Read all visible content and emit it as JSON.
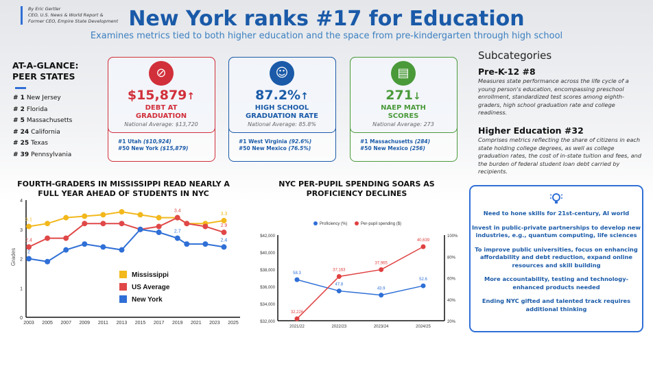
{
  "byline": [
    "By Eric Gertler",
    "CEO, U.S. News & World Report &",
    "Former CEO, Empire State Development"
  ],
  "title": "New York ranks #17 for Education",
  "subtitle": "Examines metrics tied to both higher education and the space from pre-kindergarten through high school",
  "glance": {
    "heading1": "AT-A-GLANCE:",
    "heading2": "PEER STATES",
    "peers": [
      {
        "rank": "# 1",
        "state": "New Jersey"
      },
      {
        "rank": "# 2",
        "state": "Florida"
      },
      {
        "rank": "# 5",
        "state": "Massachusetts"
      },
      {
        "rank": "# 24",
        "state": "California"
      },
      {
        "rank": "# 25",
        "state": "Texas"
      },
      {
        "rank": "# 39",
        "state": "Pennsylvania"
      }
    ]
  },
  "cards": [
    {
      "icon": "money-icon",
      "value": "$15,879",
      "arrow": "↑",
      "label1": "DEBT AT",
      "label2": "GRADUATION",
      "avg": "National Average: $13,720",
      "best": "#1 Utah",
      "best_val": "($10,924)",
      "worst": "#50 New York",
      "worst_val": "($15,879)",
      "color": "#d12f3a"
    },
    {
      "icon": "graduate-icon",
      "value": "87.2%",
      "arrow": "↑",
      "label1": "HIGH SCHOOL",
      "label2": "GRADUATION RATE",
      "avg": "National Average: 85.8%",
      "best": "#1 West Virginia",
      "best_val": "(92.6%)",
      "worst": "#50 New Mexico",
      "worst_val": "(76.5%)",
      "color": "#1a5aa8"
    },
    {
      "icon": "book-icon",
      "value": "271",
      "arrow": "↓",
      "label1": "NAEP MATH",
      "label2": "SCORES",
      "avg": "National Average: 273",
      "best": "#1 Massachusetts",
      "best_val": "(284)",
      "worst": "#50 New Mexico",
      "worst_val": "(256)",
      "color": "#4a9a3a"
    }
  ],
  "subcategories": {
    "heading": "Subcategories",
    "prek_title": "Pre-K-12 #8",
    "prek_desc": "Measures state performance across the life cycle of a young person's education, encompassing preschool enrollment, standardized test scores among eighth-graders, high school graduation rate and college readiness.",
    "higher_title": "Higher Education #32",
    "higher_desc": "Comprises metrics reflecting the share of citizens in each state holding college degrees, as well as college graduation rates, the cost of in-state tuition and fees, and the burden of federal student loan debt carried by recipients."
  },
  "recommendations": [
    "Need to hone skills for 21st-century, AI world",
    "Invest in public-private partnerships to develop new industries, e.g., quantum computing, life sciences",
    "To improve public universities, focus on enhancing affordability and debt reduction, expand online resources and skill building",
    "More accountability, testing and technology-enhanced products needed",
    "Ending NYC gifted and talented track requires additional thinking"
  ],
  "chart_data": [
    {
      "type": "line",
      "title": "FOURTH-GRADERS IN MISSISSIPPI READ NEARLY A FULL YEAR AHEAD OF STUDENTS IN NYC",
      "ylabel": "Grades",
      "ylim": [
        0,
        4
      ],
      "yticks": [
        "0",
        "1",
        "2",
        "3",
        "4"
      ],
      "xlim": [
        2003,
        2025
      ],
      "xticks": [
        "2003",
        "2005",
        "2007",
        "2009",
        "2011",
        "2013",
        "2015",
        "2017",
        "2019",
        "2021",
        "2023",
        "2025"
      ],
      "x": [
        2003,
        2005,
        2007,
        2009,
        2011,
        2013,
        2015,
        2017,
        2019,
        2020,
        2022,
        2024
      ],
      "legend_position": "center",
      "series": [
        {
          "name": "Mississippi",
          "color": "#f2b81c",
          "values": [
            3.1,
            3.2,
            3.4,
            3.45,
            3.5,
            3.6,
            3.5,
            3.4,
            3.4,
            3.2,
            3.2,
            3.3
          ],
          "labels": {
            "0": "3.1",
            "11": "3.3"
          }
        },
        {
          "name": "US Average",
          "color": "#e04848",
          "values": [
            2.4,
            2.7,
            2.7,
            3.2,
            3.2,
            3.2,
            3.0,
            3.1,
            3.4,
            3.2,
            3.1,
            2.9
          ],
          "labels": {
            "0": "2.4",
            "8": "3.4",
            "11": "2.9"
          }
        },
        {
          "name": "New York",
          "color": "#2f6fd6",
          "values": [
            2.0,
            1.9,
            2.3,
            2.5,
            2.4,
            2.3,
            3.0,
            2.9,
            2.7,
            2.5,
            2.5,
            2.4
          ],
          "labels": {
            "0": "2",
            "8": "2.7",
            "11": "2.4"
          }
        }
      ]
    },
    {
      "type": "line",
      "title": "NYC PER-PUPIL SPENDING SOARS AS PROFICIENCY  DECLINES",
      "categories": [
        "2021/22",
        "2022/23",
        "2023/24",
        "2024/25"
      ],
      "y_left": {
        "lim": [
          32000,
          42000
        ],
        "ticks": [
          "$32,000",
          "$34,000",
          "$36,000",
          "$38,000",
          "$40,000",
          "$42,000"
        ]
      },
      "y_right": {
        "lim": [
          20,
          100
        ],
        "ticks": [
          "20%",
          "40%",
          "60%",
          "80%",
          "100%"
        ]
      },
      "legend_position": "top",
      "series": [
        {
          "name": "Proficiency (%)",
          "axis": "right",
          "color": "#2f6fd6",
          "values": [
            58.3,
            47.8,
            43.9,
            52.6
          ],
          "labels": [
            "58.3",
            "47.8",
            "43.9",
            "52.6"
          ]
        },
        {
          "name": "Per-pupil spending ($)",
          "axis": "left",
          "color": "#e04040",
          "values": [
            32226,
            37163,
            37965,
            40639
          ],
          "labels": [
            "32,226",
            "37,163",
            "37,965",
            "40,639"
          ]
        }
      ]
    }
  ]
}
